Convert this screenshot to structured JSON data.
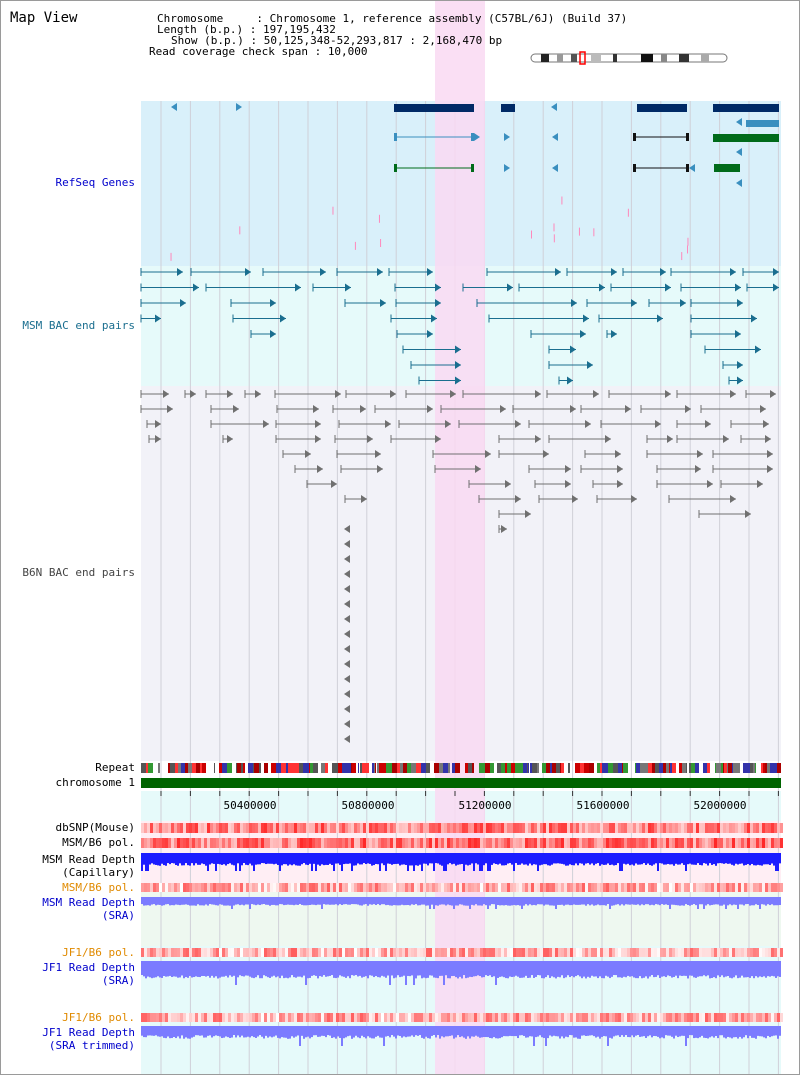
{
  "view_title": "Map View",
  "info": {
    "chromosome_label": "Chromosome     :",
    "chromosome_value": "Chromosome 1, reference assembly (C57BL/6J) (Build 37)",
    "length_label": "Length (b.p.) :",
    "length_value": "197,195,432",
    "show_label": "Show (b.p.) :",
    "show_value": "50,125,348-52,293,817 : 2,168,470 bp",
    "coverage_label": "Read coverage check span :",
    "coverage_value": "10,000"
  },
  "tracks": {
    "refseq": "RefSeq Genes",
    "msm_bac": "MSM BAC end pairs",
    "b6n_bac": "B6N BAC end pairs",
    "repeat": "Repeat",
    "chromosome": "chromosome 1",
    "dbsnp": "dbSNP(Mouse)",
    "msm_b6_pol": "MSM/B6 pol.",
    "msm_read_depth_l1": "MSM Read Depth",
    "msm_read_depth_l2": "(Capillary)",
    "msm_b6_pol_sra": "MSM/B6 pol.",
    "msm_read_depth_sra_l1": "MSM Read Depth",
    "msm_read_depth_sra_l2": "(SRA)",
    "jf1_b6_pol": "JF1/B6 pol.",
    "jf1_read_depth_l1": "JF1 Read Depth",
    "jf1_read_depth_l2": "(SRA)",
    "jf1_b6_pol_trim": "JF1/B6 pol.",
    "jf1_read_depth_trim_l1": "JF1 Read Depth",
    "jf1_read_depth_trim_l2": "(SRA trimmed)"
  },
  "axis": {
    "ticks": [
      "50400000",
      "50800000",
      "51200000",
      "51600000",
      "52000000"
    ]
  },
  "colors": {
    "refseq_bg": "#d9f0fa",
    "msm_bg": "#e6fafa",
    "b6n_bg": "#f2f2f8",
    "highlight": "#f9d9f2",
    "gene_dark": "#002a66",
    "gene_mid": "#3a8fbf",
    "gene_green": "#006b1a",
    "msm_pair": "#1a6e8f",
    "b6n_pair": "#707070",
    "chromosome_bar": "#006400",
    "depth_blue": "#1c1cff",
    "depth_light": "#7b7bff",
    "label_blue": "#0000cc",
    "label_orange": "#e08a00"
  }
}
